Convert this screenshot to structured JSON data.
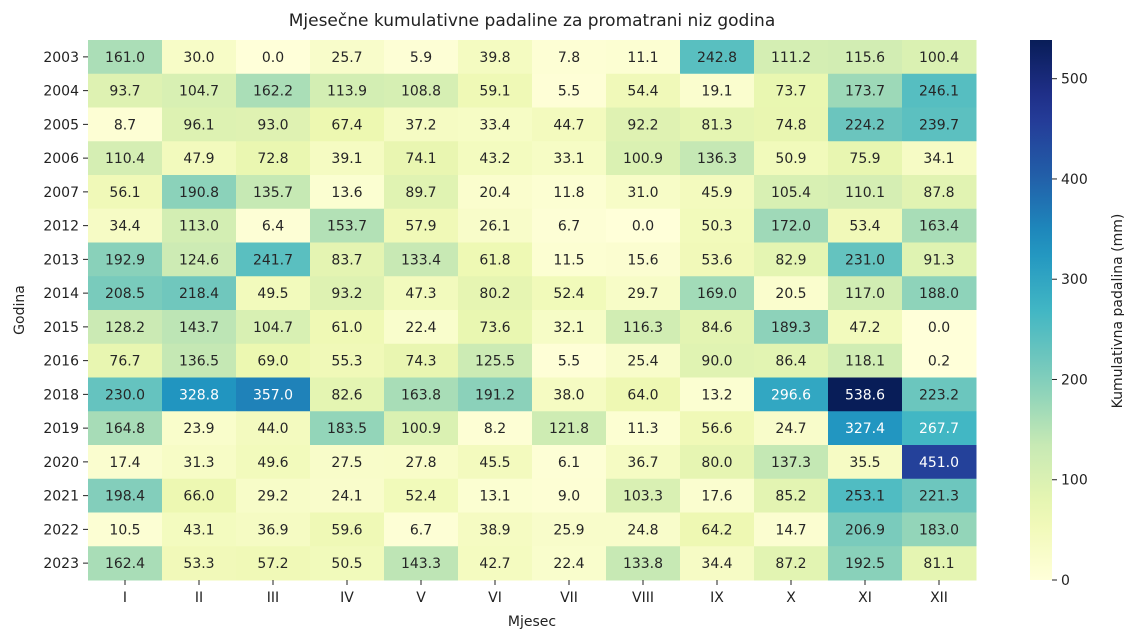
{
  "chart_data": {
    "type": "heatmap",
    "title": "Mjesečne kumulativne padaline za promatrani niz godina",
    "xlabel": "Mjesec",
    "ylabel": "Godina",
    "x": [
      "I",
      "II",
      "III",
      "IV",
      "V",
      "VI",
      "VII",
      "VIII",
      "IX",
      "X",
      "XI",
      "XII"
    ],
    "y": [
      "2003",
      "2004",
      "2005",
      "2006",
      "2007",
      "2012",
      "2013",
      "2014",
      "2015",
      "2016",
      "2018",
      "2019",
      "2020",
      "2021",
      "2022",
      "2023"
    ],
    "values": [
      [
        161.0,
        30.0,
        0.0,
        25.7,
        5.9,
        39.8,
        7.8,
        11.1,
        242.8,
        111.2,
        115.6,
        100.4
      ],
      [
        93.7,
        104.7,
        162.2,
        113.9,
        108.8,
        59.1,
        5.5,
        54.4,
        19.1,
        73.7,
        173.7,
        246.1
      ],
      [
        8.7,
        96.1,
        93.0,
        67.4,
        37.2,
        33.4,
        44.7,
        92.2,
        81.3,
        74.8,
        224.2,
        239.7
      ],
      [
        110.4,
        47.9,
        72.8,
        39.1,
        74.1,
        43.2,
        33.1,
        100.9,
        136.3,
        50.9,
        75.9,
        34.1
      ],
      [
        56.1,
        190.8,
        135.7,
        13.6,
        89.7,
        20.4,
        11.8,
        31.0,
        45.9,
        105.4,
        110.1,
        87.8
      ],
      [
        34.4,
        113.0,
        6.4,
        153.7,
        57.9,
        26.1,
        6.7,
        0.0,
        50.3,
        172.0,
        53.4,
        163.4
      ],
      [
        192.9,
        124.6,
        241.7,
        83.7,
        133.4,
        61.8,
        11.5,
        15.6,
        53.6,
        82.9,
        231.0,
        91.3
      ],
      [
        208.5,
        218.4,
        49.5,
        93.2,
        47.3,
        80.2,
        52.4,
        29.7,
        169.0,
        20.5,
        117.0,
        188.0
      ],
      [
        128.2,
        143.7,
        104.7,
        61.0,
        22.4,
        73.6,
        32.1,
        116.3,
        84.6,
        189.3,
        47.2,
        0.0
      ],
      [
        76.7,
        136.5,
        69.0,
        55.3,
        74.3,
        125.5,
        5.5,
        25.4,
        90.0,
        86.4,
        118.1,
        0.2
      ],
      [
        230.0,
        328.8,
        357.0,
        82.6,
        163.8,
        191.2,
        38.0,
        64.0,
        13.2,
        296.6,
        538.6,
        223.2
      ],
      [
        164.8,
        23.9,
        44.0,
        183.5,
        100.9,
        8.2,
        121.8,
        11.3,
        56.6,
        24.7,
        327.4,
        267.7
      ],
      [
        17.4,
        31.3,
        49.6,
        27.5,
        27.8,
        45.5,
        6.1,
        36.7,
        80.0,
        137.3,
        35.5,
        451.0
      ],
      [
        198.4,
        66.0,
        29.2,
        24.1,
        52.4,
        13.1,
        9.0,
        103.3,
        17.6,
        85.2,
        253.1,
        221.3
      ],
      [
        10.5,
        43.1,
        36.9,
        59.6,
        6.7,
        38.9,
        25.9,
        24.8,
        64.2,
        14.7,
        206.9,
        183.0
      ],
      [
        162.4,
        53.3,
        57.2,
        50.5,
        143.3,
        42.7,
        22.4,
        133.8,
        34.4,
        87.2,
        192.5,
        81.1
      ]
    ],
    "value_labels": [
      [
        "161.0",
        "30.0",
        "0.0",
        "25.7",
        "5.9",
        "39.8",
        "7.8",
        "11.1",
        "242.8",
        "111.2",
        "115.6",
        "100.4"
      ],
      [
        "93.7",
        "104.7",
        "162.2",
        "113.9",
        "108.8",
        "59.1",
        "5.5",
        "54.4",
        "19.1",
        "73.7",
        "173.7",
        "246.1"
      ],
      [
        "8.7",
        "96.1",
        "93.0",
        "67.4",
        "37.2",
        "33.4",
        "44.7",
        "92.2",
        "81.3",
        "74.8",
        "224.2",
        "239.7"
      ],
      [
        "110.4",
        "47.9",
        "72.8",
        "39.1",
        "74.1",
        "43.2",
        "33.1",
        "100.9",
        "136.3",
        "50.9",
        "75.9",
        "34.1"
      ],
      [
        "56.1",
        "190.8",
        "135.7",
        "13.6",
        "89.7",
        "20.4",
        "11.8",
        "31.0",
        "45.9",
        "105.4",
        "110.1",
        "87.8"
      ],
      [
        "34.4",
        "113.0",
        "6.4",
        "153.7",
        "57.9",
        "26.1",
        "6.7",
        "0.0",
        "50.3",
        "172.0",
        "53.4",
        "163.4"
      ],
      [
        "192.9",
        "124.6",
        "241.7",
        "83.7",
        "133.4",
        "61.8",
        "11.5",
        "15.6",
        "53.6",
        "82.9",
        "231.0",
        "91.3"
      ],
      [
        "208.5",
        "218.4",
        "49.5",
        "93.2",
        "47.3",
        "80.2",
        "52.4",
        "29.7",
        "169.0",
        "20.5",
        "117.0",
        "188.0"
      ],
      [
        "128.2",
        "143.7",
        "104.7",
        "61.0",
        "22.4",
        "73.6",
        "32.1",
        "116.3",
        "84.6",
        "189.3",
        "47.2",
        "0.0"
      ],
      [
        "76.7",
        "136.5",
        "69.0",
        "55.3",
        "74.3",
        "125.5",
        "5.5",
        "25.4",
        "90.0",
        "86.4",
        "118.1",
        "0.2"
      ],
      [
        "230.0",
        "328.8",
        "357.0",
        "82.6",
        "163.8",
        "191.2",
        "38.0",
        "64.0",
        "13.2",
        "296.6",
        "538.6",
        "223.2"
      ],
      [
        "164.8",
        "23.9",
        "44.0",
        "183.5",
        "100.9",
        "8.2",
        "121.8",
        "11.3",
        "56.6",
        "24.7",
        "327.4",
        "267.7"
      ],
      [
        "17.4",
        "31.3",
        "49.6",
        "27.5",
        "27.8",
        "45.5",
        "6.1",
        "36.7",
        "80.0",
        "137.3",
        "35.5",
        "451.0"
      ],
      [
        "198.4",
        "66.0",
        "29.2",
        "24.1",
        "52.4",
        "13.1",
        "9.0",
        "103.3",
        "17.6",
        "85.2",
        "253.1",
        "221.3"
      ],
      [
        "10.5",
        "43.1",
        "36.9",
        "59.6",
        "6.7",
        "38.9",
        "25.9",
        "24.8",
        "64.2",
        "14.7",
        "206.9",
        "183.0"
      ],
      [
        "162.4",
        "53.3",
        "57.2",
        "50.5",
        "143.3",
        "42.7",
        "22.4",
        "133.8",
        "34.4",
        "87.2",
        "192.5",
        "81.1"
      ]
    ],
    "colorbar_label": "Kumulativna padalina (mm)",
    "colormap": "YlGnBu",
    "clim": [
      0,
      538.6
    ],
    "cticks": [
      0,
      100,
      200,
      300,
      400,
      500
    ]
  }
}
